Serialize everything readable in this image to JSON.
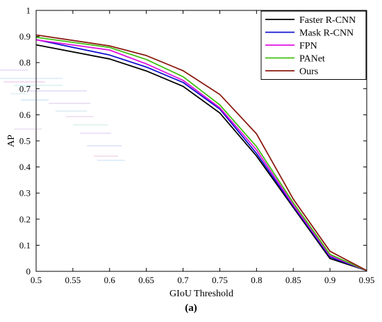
{
  "caption": "(a)",
  "chart_data": {
    "type": "line",
    "title": "",
    "xlabel": "GIoU Threshold",
    "ylabel": "AP",
    "xlim": [
      0.5,
      0.95
    ],
    "ylim": [
      0,
      1
    ],
    "xticks": [
      "0.5",
      "0.55",
      "0.6",
      "0.65",
      "0.7",
      "0.75",
      "0.8",
      "0.85",
      "0.9",
      "0.95"
    ],
    "yticks": [
      "0",
      "0.1",
      "0.2",
      "0.3",
      "0.4",
      "0.5",
      "0.6",
      "0.7",
      "0.8",
      "0.9",
      "1"
    ],
    "grid": false,
    "legend_position": "top-right",
    "x": [
      0.5,
      0.6,
      0.65,
      0.7,
      0.75,
      0.8,
      0.85,
      0.9,
      0.95
    ],
    "series": [
      {
        "name": "Faster R-CNN",
        "color": "#000000",
        "values": [
          0.868,
          0.814,
          0.768,
          0.709,
          0.607,
          0.442,
          0.245,
          0.049,
          0.003
        ]
      },
      {
        "name": "Mask R-CNN",
        "color": "#1010d0",
        "values": [
          0.888,
          0.829,
          0.783,
          0.724,
          0.622,
          0.452,
          0.25,
          0.055,
          0.003
        ]
      },
      {
        "name": "FPN",
        "color": "#e010e0",
        "values": [
          0.887,
          0.848,
          0.795,
          0.732,
          0.627,
          0.465,
          0.255,
          0.06,
          0.003
        ]
      },
      {
        "name": "PANet",
        "color": "#40c010",
        "values": [
          0.897,
          0.858,
          0.812,
          0.746,
          0.638,
          0.478,
          0.263,
          0.065,
          0.003
        ]
      },
      {
        "name": "Ours",
        "color": "#8b1a10",
        "values": [
          0.906,
          0.864,
          0.827,
          0.769,
          0.678,
          0.527,
          0.277,
          0.077,
          0.003
        ]
      }
    ]
  }
}
